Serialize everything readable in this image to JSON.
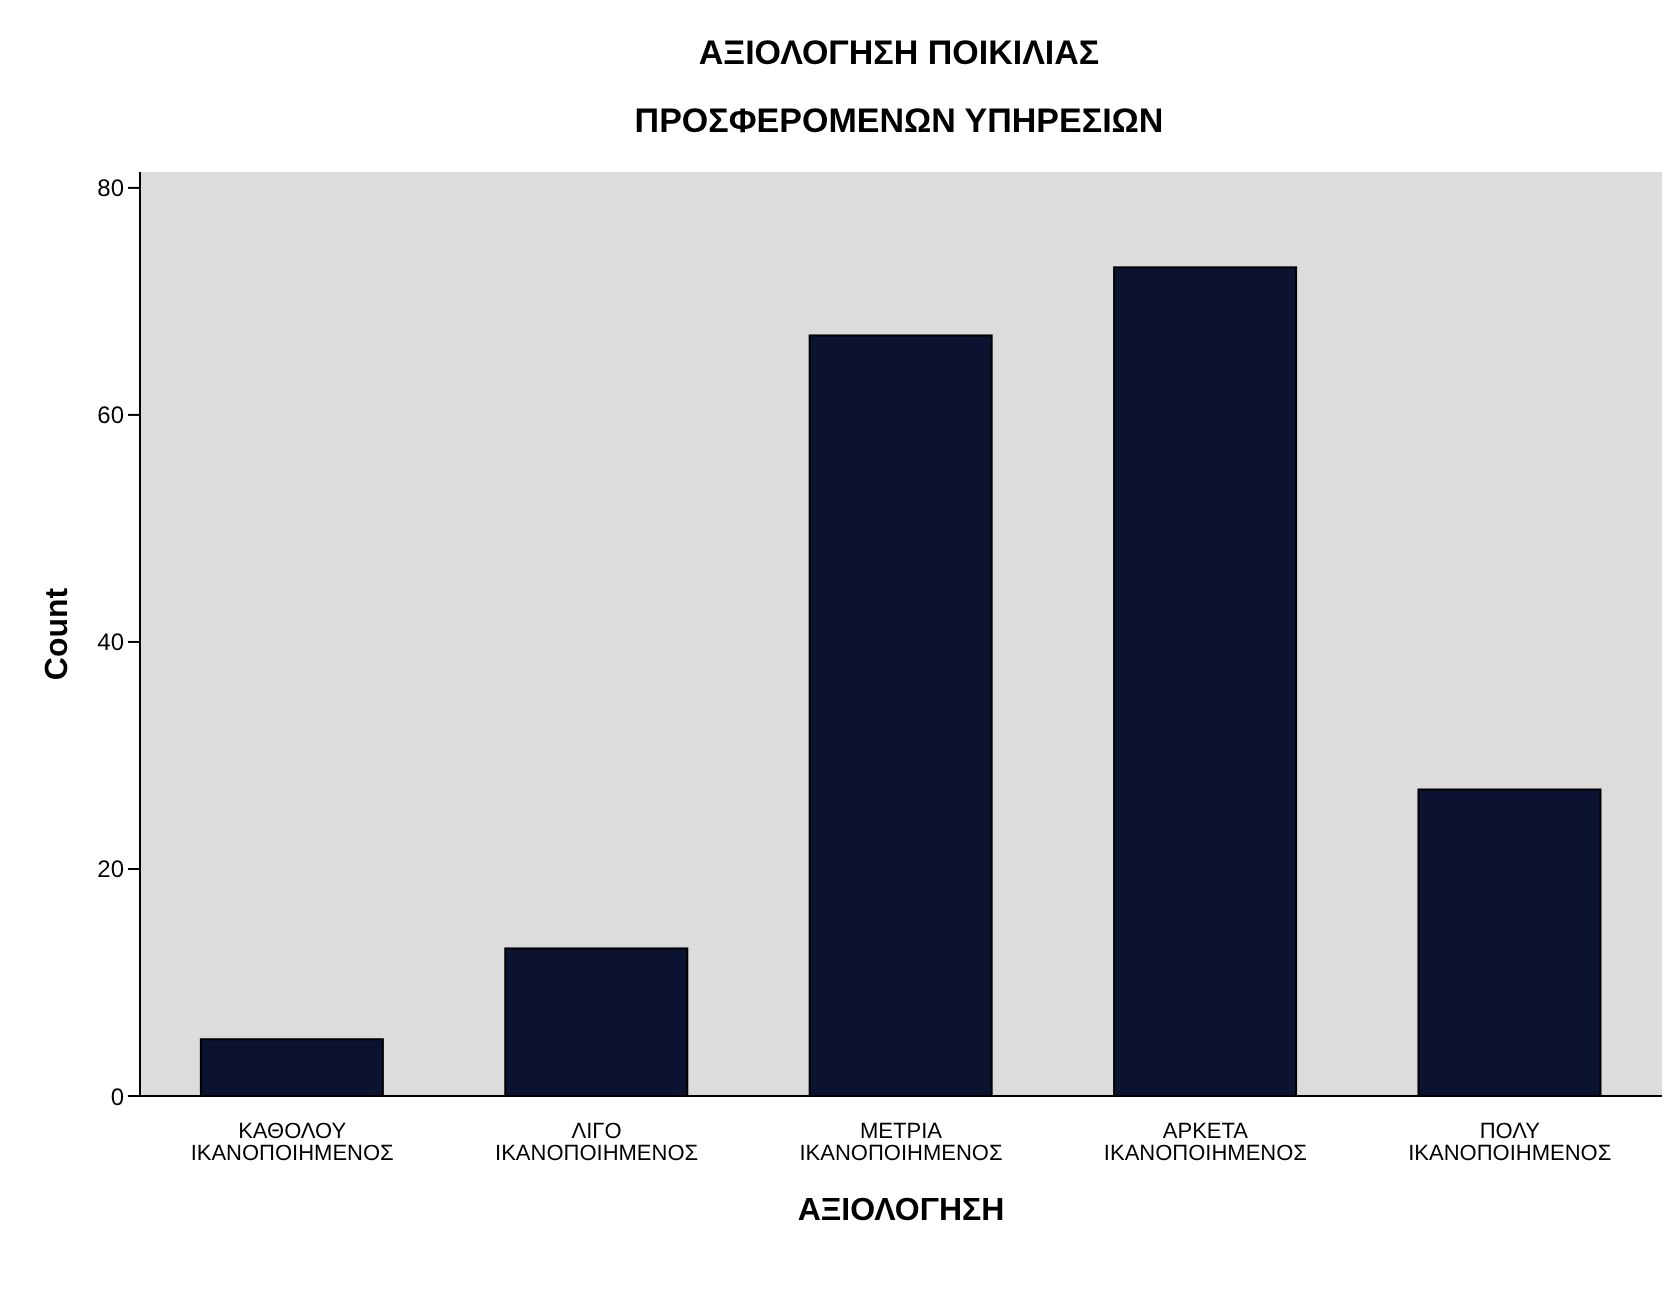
{
  "chart_data": {
    "type": "bar",
    "title": "ΑΞΙΟΛΟΓΗΣΗ ΠΟΙΚΙΛΙΑΣ\nΠΡΟΣΦΕΡΟΜΕΝΩΝ ΥΠΗΡΕΣΙΩΝ",
    "xlabel": "ΑΞΙΟΛΟΓΗΣΗ",
    "ylabel": "Count",
    "categories": [
      "ΚΑΘΟΛΟΥ\nΙΚΑΝΟΠΟΙΗΜΕΝΟΣ",
      "ΛΙΓΟ\nΙΚΑΝΟΠΟΙΗΜΕΝΟΣ",
      "ΜΕΤΡΙΑ\nΙΚΑΝΟΠΟΙΗΜΕΝΟΣ",
      "ΑΡΚΕΤΑ\nΙΚΑΝΟΠΟΙΗΜΕΝΟΣ",
      "ΠΟΛΥ\nΙΚΑΝΟΠΟΙΗΜΕΝΟΣ"
    ],
    "values": [
      5,
      13,
      67,
      73,
      27
    ],
    "color": "#0b1331",
    "ylim": [
      0,
      81.4
    ],
    "yticks": [
      0,
      20,
      40,
      60,
      80
    ],
    "grid": false
  }
}
